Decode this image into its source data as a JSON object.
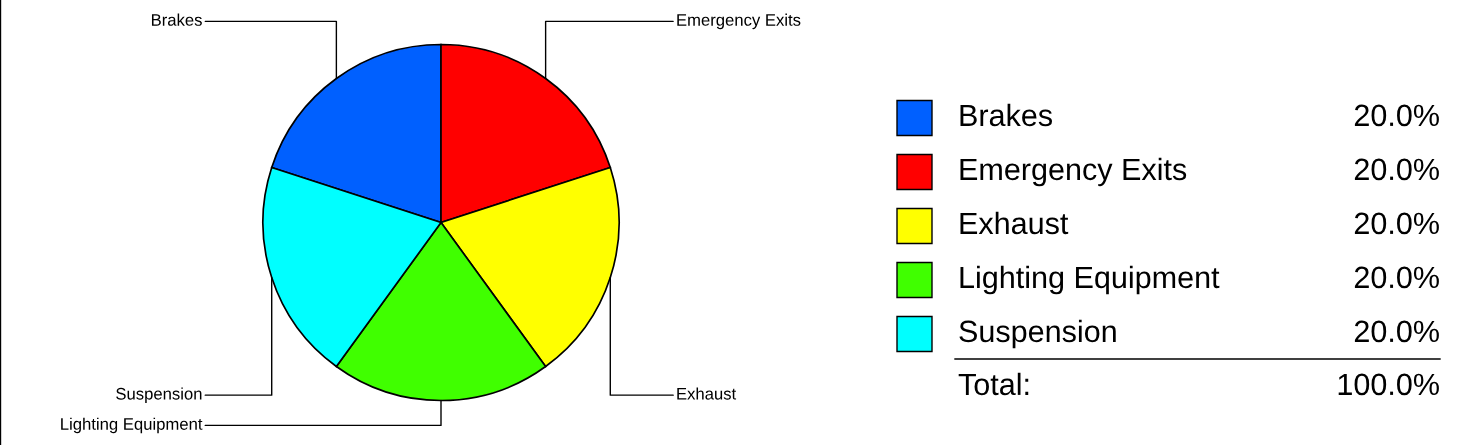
{
  "chart_data": {
    "type": "pie",
    "categories": [
      "Brakes",
      "Emergency Exits",
      "Exhaust",
      "Lighting Equipment",
      "Suspension"
    ],
    "values": [
      20,
      20,
      20,
      20,
      20
    ],
    "colors": [
      "#0060ff",
      "#ff0000",
      "#ffff00",
      "#40ff00",
      "#00ffff"
    ],
    "value_labels": [
      "20.0%",
      "20.0%",
      "20.0%",
      "20.0%",
      "20.0%"
    ],
    "totals": [
      "100.0%"
    ],
    "annotations": [
      "Total:"
    ],
    "legend": "right"
  }
}
